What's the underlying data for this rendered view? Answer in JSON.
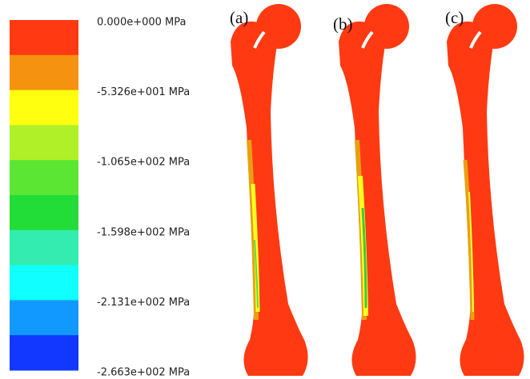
{
  "legend": {
    "labels": [
      "0.000e+000 MPa",
      "-5.326e+001 MPa",
      "-1.065e+002 MPa",
      "-1.598e+002 MPa",
      "-2.131e+002 MPa",
      "-2.663e+002 MPa"
    ],
    "colors": [
      "#ff3a12",
      "#f5920f",
      "#ffff10",
      "#b0f028",
      "#5ae632",
      "#22dd38",
      "#33edb0",
      "#10ffff",
      "#1199ff",
      "#1238ff"
    ]
  },
  "panels": [
    {
      "label": "(a)"
    },
    {
      "label": "(b)"
    },
    {
      "label": "(c)"
    }
  ]
}
